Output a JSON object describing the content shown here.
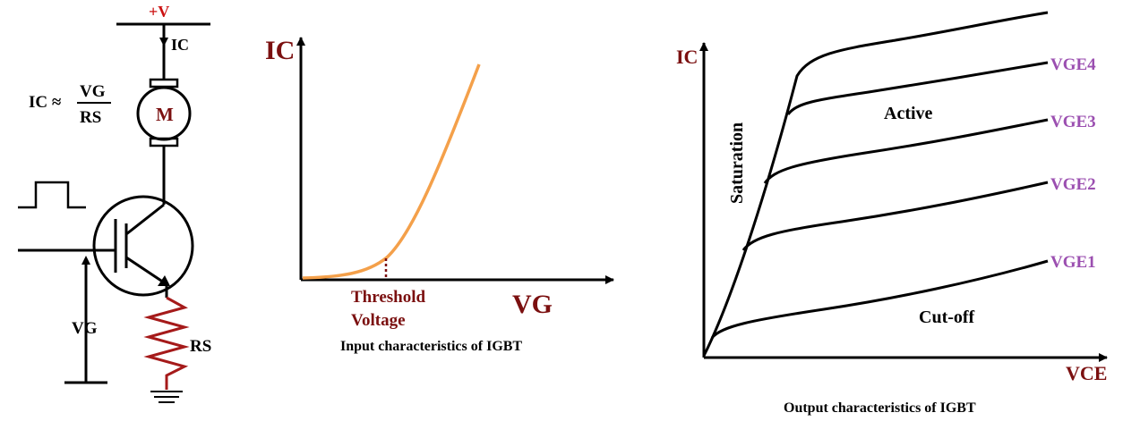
{
  "circuit": {
    "supply_label": "+V",
    "ic_label": "IC",
    "formula_lhs": "IC ≈",
    "formula_num": "VG",
    "formula_den": "RS",
    "motor_label": "M",
    "vg_label": "VG",
    "rs_label": "RS"
  },
  "input_chart": {
    "ylabel": "IC",
    "xlabel": "VG",
    "threshold_line1": "Threshold",
    "threshold_line2": "Voltage",
    "caption": "Input characteristics of IGBT"
  },
  "output_chart": {
    "ylabel": "IC",
    "xlabel": "VCE",
    "region_saturation": "Saturation",
    "region_active": "Active",
    "region_cutoff": "Cut-off",
    "curves": [
      "VGE4",
      "VGE3",
      "VGE2",
      "VGE1"
    ],
    "caption": "Output characteristics of IGBT"
  },
  "colors": {
    "dark_red": "#7b1010",
    "red": "#cc1111",
    "orange": "#f4a04a",
    "purple": "#9b4fb0",
    "black": "#000000"
  }
}
